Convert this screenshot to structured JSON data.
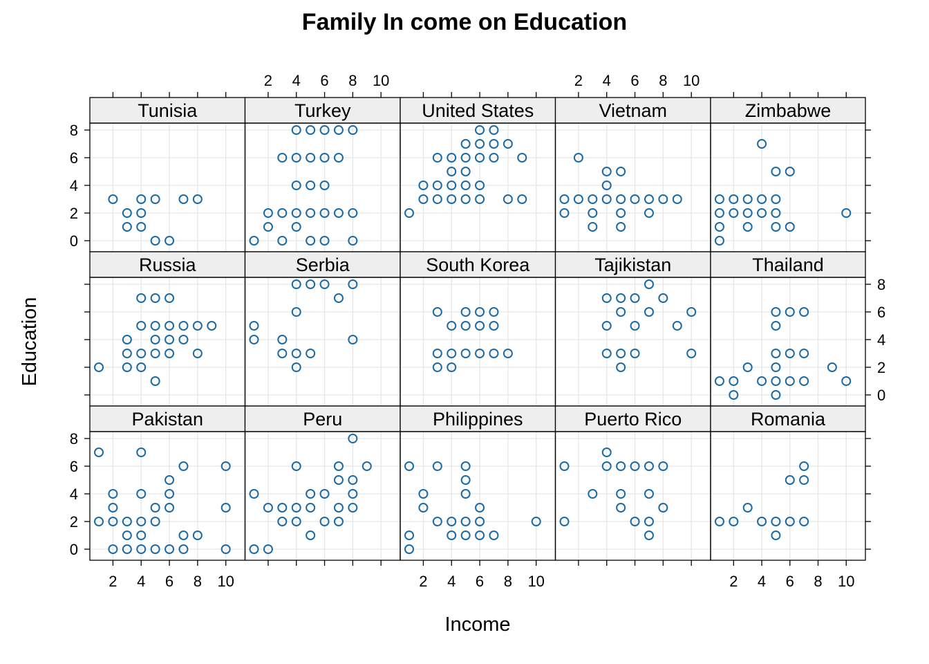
{
  "chart_data": {
    "type": "scatter",
    "title": "Family In come on Education",
    "xlabel": "Income",
    "ylabel": "Education",
    "xlim": [
      0,
      11
    ],
    "ylim": [
      -0.8,
      8.5
    ],
    "x_ticks": [
      2,
      4,
      6,
      8,
      10
    ],
    "y_ticks": [
      0,
      2,
      4,
      6,
      8
    ],
    "grid": true,
    "point_color": "#1a6aa6",
    "strip_color": "#eeeeee",
    "panels": [
      {
        "name": "Tunisia",
        "points": [
          [
            2,
            3
          ],
          [
            3,
            2
          ],
          [
            3,
            1
          ],
          [
            4,
            3
          ],
          [
            4,
            2
          ],
          [
            4,
            1
          ],
          [
            5,
            3
          ],
          [
            5,
            0
          ],
          [
            6,
            0
          ],
          [
            7,
            3
          ],
          [
            8,
            3
          ]
        ]
      },
      {
        "name": "Turkey",
        "points": [
          [
            1,
            0
          ],
          [
            2,
            2
          ],
          [
            2,
            1
          ],
          [
            3,
            6
          ],
          [
            3,
            2
          ],
          [
            3,
            0
          ],
          [
            4,
            8
          ],
          [
            4,
            6
          ],
          [
            4,
            4
          ],
          [
            4,
            2
          ],
          [
            4,
            1
          ],
          [
            5,
            8
          ],
          [
            5,
            6
          ],
          [
            5,
            4
          ],
          [
            5,
            2
          ],
          [
            5,
            0
          ],
          [
            6,
            8
          ],
          [
            6,
            6
          ],
          [
            6,
            4
          ],
          [
            6,
            2
          ],
          [
            6,
            0
          ],
          [
            7,
            8
          ],
          [
            7,
            6
          ],
          [
            7,
            2
          ],
          [
            8,
            8
          ],
          [
            8,
            2
          ],
          [
            8,
            0
          ]
        ]
      },
      {
        "name": "United States",
        "points": [
          [
            1,
            2
          ],
          [
            2,
            4
          ],
          [
            2,
            3
          ],
          [
            3,
            6
          ],
          [
            3,
            4
          ],
          [
            3,
            3
          ],
          [
            4,
            6
          ],
          [
            4,
            5
          ],
          [
            4,
            4
          ],
          [
            4,
            3
          ],
          [
            5,
            7
          ],
          [
            5,
            6
          ],
          [
            5,
            5
          ],
          [
            5,
            4
          ],
          [
            5,
            3
          ],
          [
            6,
            8
          ],
          [
            6,
            7
          ],
          [
            6,
            6
          ],
          [
            6,
            4
          ],
          [
            6,
            3
          ],
          [
            7,
            8
          ],
          [
            7,
            7
          ],
          [
            7,
            6
          ],
          [
            8,
            7
          ],
          [
            8,
            3
          ],
          [
            9,
            6
          ],
          [
            9,
            3
          ]
        ]
      },
      {
        "name": "Vietnam",
        "points": [
          [
            1,
            3
          ],
          [
            1,
            2
          ],
          [
            2,
            6
          ],
          [
            2,
            3
          ],
          [
            3,
            3
          ],
          [
            3,
            2
          ],
          [
            3,
            1
          ],
          [
            4,
            5
          ],
          [
            4,
            4
          ],
          [
            4,
            3
          ],
          [
            5,
            5
          ],
          [
            5,
            3
          ],
          [
            5,
            2
          ],
          [
            5,
            1
          ],
          [
            6,
            3
          ],
          [
            7,
            3
          ],
          [
            7,
            2
          ],
          [
            8,
            3
          ],
          [
            9,
            3
          ]
        ]
      },
      {
        "name": "Zimbabwe",
        "points": [
          [
            1,
            3
          ],
          [
            1,
            2
          ],
          [
            1,
            1
          ],
          [
            1,
            0
          ],
          [
            2,
            3
          ],
          [
            2,
            2
          ],
          [
            3,
            3
          ],
          [
            3,
            2
          ],
          [
            3,
            1
          ],
          [
            4,
            7
          ],
          [
            4,
            3
          ],
          [
            4,
            2
          ],
          [
            5,
            5
          ],
          [
            5,
            3
          ],
          [
            5,
            2
          ],
          [
            5,
            1
          ],
          [
            6,
            5
          ],
          [
            6,
            1
          ],
          [
            10,
            2
          ]
        ]
      },
      {
        "name": "Russia",
        "points": [
          [
            1,
            2
          ],
          [
            3,
            4
          ],
          [
            3,
            3
          ],
          [
            3,
            2
          ],
          [
            4,
            7
          ],
          [
            4,
            5
          ],
          [
            4,
            3
          ],
          [
            4,
            2
          ],
          [
            5,
            7
          ],
          [
            5,
            5
          ],
          [
            5,
            4
          ],
          [
            5,
            3
          ],
          [
            5,
            1
          ],
          [
            6,
            7
          ],
          [
            6,
            5
          ],
          [
            6,
            4
          ],
          [
            6,
            3
          ],
          [
            7,
            5
          ],
          [
            7,
            4
          ],
          [
            8,
            5
          ],
          [
            8,
            3
          ],
          [
            9,
            5
          ]
        ]
      },
      {
        "name": "Serbia",
        "points": [
          [
            1,
            5
          ],
          [
            1,
            4
          ],
          [
            3,
            4
          ],
          [
            3,
            3
          ],
          [
            4,
            8
          ],
          [
            4,
            6
          ],
          [
            4,
            3
          ],
          [
            4,
            2
          ],
          [
            5,
            8
          ],
          [
            5,
            3
          ],
          [
            6,
            8
          ],
          [
            7,
            7
          ],
          [
            8,
            8
          ],
          [
            8,
            4
          ]
        ]
      },
      {
        "name": "South Korea",
        "points": [
          [
            3,
            6
          ],
          [
            3,
            3
          ],
          [
            3,
            2
          ],
          [
            4,
            5
          ],
          [
            4,
            3
          ],
          [
            4,
            2
          ],
          [
            5,
            6
          ],
          [
            5,
            5
          ],
          [
            5,
            3
          ],
          [
            6,
            6
          ],
          [
            6,
            5
          ],
          [
            6,
            3
          ],
          [
            7,
            6
          ],
          [
            7,
            5
          ],
          [
            7,
            3
          ],
          [
            8,
            3
          ]
        ]
      },
      {
        "name": "Tajikistan",
        "points": [
          [
            4,
            7
          ],
          [
            4,
            5
          ],
          [
            4,
            3
          ],
          [
            5,
            7
          ],
          [
            5,
            6
          ],
          [
            5,
            3
          ],
          [
            5,
            2
          ],
          [
            6,
            7
          ],
          [
            6,
            5
          ],
          [
            6,
            3
          ],
          [
            7,
            8
          ],
          [
            7,
            6
          ],
          [
            8,
            7
          ],
          [
            9,
            5
          ],
          [
            10,
            6
          ],
          [
            10,
            3
          ]
        ]
      },
      {
        "name": "Thailand",
        "points": [
          [
            1,
            1
          ],
          [
            2,
            1
          ],
          [
            2,
            0
          ],
          [
            3,
            2
          ],
          [
            4,
            1
          ],
          [
            5,
            6
          ],
          [
            5,
            5
          ],
          [
            5,
            3
          ],
          [
            5,
            2
          ],
          [
            5,
            1
          ],
          [
            5,
            0
          ],
          [
            6,
            6
          ],
          [
            6,
            3
          ],
          [
            6,
            1
          ],
          [
            7,
            6
          ],
          [
            7,
            3
          ],
          [
            7,
            1
          ],
          [
            9,
            2
          ],
          [
            10,
            1
          ]
        ]
      },
      {
        "name": "Pakistan",
        "points": [
          [
            1,
            7
          ],
          [
            1,
            2
          ],
          [
            2,
            4
          ],
          [
            2,
            3
          ],
          [
            2,
            2
          ],
          [
            2,
            0
          ],
          [
            3,
            2
          ],
          [
            3,
            1
          ],
          [
            3,
            0
          ],
          [
            4,
            7
          ],
          [
            4,
            4
          ],
          [
            4,
            2
          ],
          [
            4,
            1
          ],
          [
            4,
            0
          ],
          [
            5,
            3
          ],
          [
            5,
            2
          ],
          [
            5,
            0
          ],
          [
            6,
            5
          ],
          [
            6,
            4
          ],
          [
            6,
            3
          ],
          [
            6,
            0
          ],
          [
            7,
            6
          ],
          [
            7,
            1
          ],
          [
            7,
            0
          ],
          [
            8,
            1
          ],
          [
            10,
            6
          ],
          [
            10,
            3
          ],
          [
            10,
            0
          ]
        ]
      },
      {
        "name": "Peru",
        "points": [
          [
            1,
            4
          ],
          [
            1,
            0
          ],
          [
            2,
            3
          ],
          [
            2,
            0
          ],
          [
            3,
            3
          ],
          [
            3,
            2
          ],
          [
            4,
            6
          ],
          [
            4,
            3
          ],
          [
            4,
            2
          ],
          [
            5,
            4
          ],
          [
            5,
            3
          ],
          [
            5,
            1
          ],
          [
            6,
            4
          ],
          [
            6,
            2
          ],
          [
            7,
            6
          ],
          [
            7,
            5
          ],
          [
            7,
            3
          ],
          [
            7,
            2
          ],
          [
            8,
            8
          ],
          [
            8,
            5
          ],
          [
            8,
            4
          ],
          [
            8,
            3
          ],
          [
            9,
            6
          ]
        ]
      },
      {
        "name": "Philippines",
        "points": [
          [
            1,
            6
          ],
          [
            1,
            1
          ],
          [
            1,
            0
          ],
          [
            2,
            4
          ],
          [
            2,
            3
          ],
          [
            3,
            6
          ],
          [
            3,
            2
          ],
          [
            4,
            2
          ],
          [
            4,
            1
          ],
          [
            5,
            6
          ],
          [
            5,
            5
          ],
          [
            5,
            4
          ],
          [
            5,
            2
          ],
          [
            5,
            1
          ],
          [
            6,
            3
          ],
          [
            6,
            2
          ],
          [
            6,
            1
          ],
          [
            7,
            1
          ],
          [
            10,
            2
          ]
        ]
      },
      {
        "name": "Puerto Rico",
        "points": [
          [
            1,
            6
          ],
          [
            1,
            2
          ],
          [
            3,
            4
          ],
          [
            4,
            7
          ],
          [
            4,
            6
          ],
          [
            5,
            6
          ],
          [
            5,
            4
          ],
          [
            5,
            3
          ],
          [
            6,
            6
          ],
          [
            6,
            2
          ],
          [
            7,
            6
          ],
          [
            7,
            4
          ],
          [
            7,
            2
          ],
          [
            7,
            1
          ],
          [
            8,
            6
          ],
          [
            8,
            3
          ]
        ]
      },
      {
        "name": "Romania",
        "points": [
          [
            1,
            2
          ],
          [
            2,
            2
          ],
          [
            3,
            3
          ],
          [
            4,
            2
          ],
          [
            5,
            2
          ],
          [
            5,
            1
          ],
          [
            6,
            5
          ],
          [
            6,
            2
          ],
          [
            7,
            6
          ],
          [
            7,
            5
          ],
          [
            7,
            2
          ]
        ]
      }
    ]
  }
}
